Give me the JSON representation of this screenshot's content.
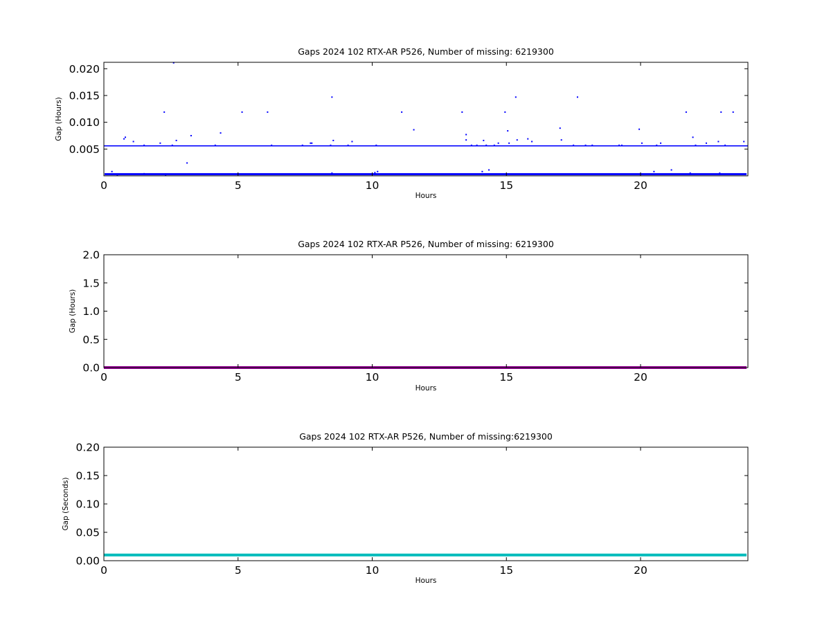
{
  "chart_data": [
    {
      "type": "scatter",
      "title": "Gaps 2024 102 RTX-AR  P526, Number of missing: 6219300",
      "xlabel": "Hours",
      "ylabel": "Gap (Hours)",
      "xlim": [
        0,
        24
      ],
      "ylim": [
        0,
        0.0212
      ],
      "x_ticks": [
        0,
        5,
        10,
        15,
        20
      ],
      "x_tick_labels": [
        "0",
        "5",
        "10",
        "15",
        "20"
      ],
      "y_ticks": [
        0.005,
        0.01,
        0.015,
        0.02
      ],
      "y_tick_labels": [
        "0.005",
        "0.010",
        "0.015",
        "0.020"
      ],
      "grid": false,
      "color": "#0000ff",
      "reference_line": 0.0056,
      "baseline": 0.0003,
      "points": [
        [
          0.3,
          0.0008
        ],
        [
          0.5,
          0.0002
        ],
        [
          0.75,
          0.0069
        ],
        [
          0.8,
          0.0072
        ],
        [
          1.1,
          0.0064
        ],
        [
          1.5,
          0.0057
        ],
        [
          1.5,
          0.0004
        ],
        [
          2.1,
          0.0061
        ],
        [
          2.25,
          0.0119
        ],
        [
          2.3,
          0.0002
        ],
        [
          2.55,
          0.0057
        ],
        [
          2.6,
          0.0211
        ],
        [
          2.7,
          0.0066
        ],
        [
          3.1,
          0.0024
        ],
        [
          3.25,
          0.0075
        ],
        [
          4.15,
          0.0057
        ],
        [
          4.35,
          0.008
        ],
        [
          4.9,
          0.0003
        ],
        [
          5.15,
          0.0119
        ],
        [
          6.1,
          0.0119
        ],
        [
          6.25,
          0.0057
        ],
        [
          7.4,
          0.0057
        ],
        [
          7.7,
          0.0061
        ],
        [
          7.75,
          0.0061
        ],
        [
          8.45,
          0.0057
        ],
        [
          8.5,
          0.0147
        ],
        [
          8.55,
          0.0066
        ],
        [
          8.5,
          0.0005
        ],
        [
          9.1,
          0.0057
        ],
        [
          9.25,
          0.0064
        ],
        [
          10.1,
          0.0006
        ],
        [
          10.15,
          0.0057
        ],
        [
          10.2,
          0.0008
        ],
        [
          11.1,
          0.0119
        ],
        [
          11.55,
          0.0086
        ],
        [
          13.35,
          0.0119
        ],
        [
          13.5,
          0.0077
        ],
        [
          13.5,
          0.0067
        ],
        [
          13.7,
          0.0057
        ],
        [
          13.9,
          0.0057
        ],
        [
          14.1,
          0.0008
        ],
        [
          14.15,
          0.0066
        ],
        [
          14.25,
          0.0057
        ],
        [
          14.35,
          0.0011
        ],
        [
          14.55,
          0.0057
        ],
        [
          14.7,
          0.0061
        ],
        [
          14.95,
          0.0119
        ],
        [
          15.05,
          0.0084
        ],
        [
          15.1,
          0.0061
        ],
        [
          15.35,
          0.0147
        ],
        [
          15.4,
          0.0067
        ],
        [
          15.8,
          0.0069
        ],
        [
          15.95,
          0.0064
        ],
        [
          17.0,
          0.0089
        ],
        [
          17.05,
          0.0067
        ],
        [
          17.5,
          0.0057
        ],
        [
          17.65,
          0.0147
        ],
        [
          17.95,
          0.0057
        ],
        [
          18.2,
          0.0057
        ],
        [
          19.2,
          0.0057
        ],
        [
          19.3,
          0.0057
        ],
        [
          19.95,
          0.0087
        ],
        [
          20.05,
          0.0061
        ],
        [
          20.5,
          0.0008
        ],
        [
          20.6,
          0.0057
        ],
        [
          20.75,
          0.0061
        ],
        [
          21.15,
          0.0011
        ],
        [
          21.7,
          0.0119
        ],
        [
          21.85,
          0.0005
        ],
        [
          21.95,
          0.0072
        ],
        [
          22.05,
          0.0057
        ],
        [
          22.45,
          0.0061
        ],
        [
          22.9,
          0.0064
        ],
        [
          22.95,
          0.0005
        ],
        [
          23.0,
          0.0119
        ],
        [
          23.15,
          0.0057
        ],
        [
          23.45,
          0.0119
        ],
        [
          23.85,
          0.0064
        ]
      ]
    },
    {
      "type": "line",
      "title": "Gaps 2024 102 RTX-AR  P526, Number of missing: 6219300",
      "xlabel": "Hours",
      "ylabel": "Gap (Hours)",
      "xlim": [
        0,
        24
      ],
      "ylim": [
        0,
        2.0
      ],
      "x_ticks": [
        0,
        5,
        10,
        15,
        20
      ],
      "x_tick_labels": [
        "0",
        "5",
        "10",
        "15",
        "20"
      ],
      "y_ticks": [
        0,
        0.5,
        1.0,
        1.5,
        2.0
      ],
      "y_tick_labels": [
        "0.0",
        "0.5",
        "1.0",
        "1.5",
        "2.0"
      ],
      "grid": false,
      "color": "#990099",
      "x": [
        0,
        23.95
      ],
      "y": [
        0,
        0
      ]
    },
    {
      "type": "line",
      "title": "Gaps 2024 102 RTX-AR  P526, Number of missing:6219300",
      "xlabel": "Hours",
      "ylabel": "Gap (Seconds)",
      "xlim": [
        0,
        24
      ],
      "ylim": [
        0,
        0.2
      ],
      "x_ticks": [
        0,
        5,
        10,
        15,
        20
      ],
      "x_tick_labels": [
        "0",
        "5",
        "10",
        "15",
        "20"
      ],
      "y_ticks": [
        0,
        0.05,
        0.1,
        0.15,
        0.2
      ],
      "y_tick_labels": [
        "0.00",
        "0.05",
        "0.10",
        "0.15",
        "0.20"
      ],
      "grid": false,
      "color": "#00bbbb",
      "x": [
        0,
        23.95
      ],
      "y": [
        0.01,
        0.01
      ]
    }
  ]
}
